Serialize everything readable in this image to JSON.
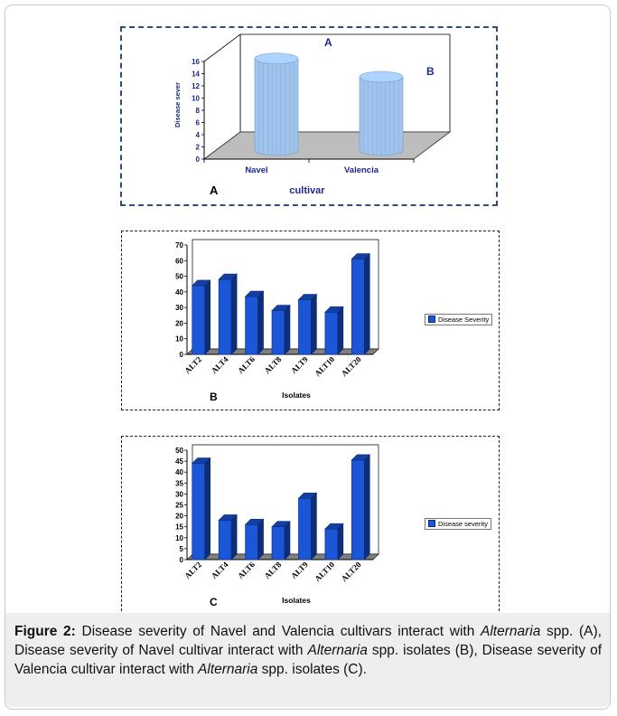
{
  "caption": {
    "lead": "Figure 2:",
    "part1": " Disease severity of Navel and Valencia cultivars interact with ",
    "genus1": "Alternaria",
    "part2": " spp. (A), Disease severity of Navel cultivar interact with ",
    "genus2": "Alternaria",
    "part3": " spp. isolates (B), Disease severity of Valencia cultivar interact with ",
    "genus3": "Alternaria",
    "part4": " spp. isolates (C)."
  },
  "chart_data": [
    {
      "panel": "A",
      "type": "bar",
      "categories": [
        "Navel",
        "Valencia"
      ],
      "values": [
        15,
        12
      ],
      "ylabel": "Disease sever",
      "xlabel": "cultivar",
      "ylim": [
        0,
        16
      ],
      "yticks": [
        "0",
        "2",
        "4",
        "6",
        "8",
        "10",
        "12",
        "14",
        "16"
      ],
      "annotations": [
        "A",
        "B"
      ],
      "panel_label": "A",
      "color": "#9fc4ee"
    },
    {
      "panel": "B",
      "type": "bar",
      "categories": [
        "ALT2",
        "ALT4",
        "ALT6",
        "ALT8",
        "ALT9",
        "ALT10",
        "ALT20"
      ],
      "values": [
        44,
        48,
        37,
        28,
        35,
        27,
        61
      ],
      "xlabel": "Isolates",
      "ylim": [
        0,
        70
      ],
      "yticks": [
        "0",
        "10",
        "20",
        "30",
        "40",
        "50",
        "60",
        "70"
      ],
      "legend": "Disease Severity",
      "panel_label": "B",
      "color": "#1a56d6"
    },
    {
      "panel": "C",
      "type": "bar",
      "categories": [
        "ALT2",
        "ALT4",
        "ALT6",
        "ALT8",
        "ALT9",
        "ALT10",
        "ALT20"
      ],
      "values": [
        44,
        18,
        16,
        15,
        28,
        14,
        45.5
      ],
      "xlabel": "Isolates",
      "ylim": [
        0,
        50
      ],
      "yticks": [
        "0",
        "5",
        "10",
        "15",
        "20",
        "25",
        "30",
        "35",
        "40",
        "45",
        "50"
      ],
      "legend": "Disease severity",
      "panel_label": "C",
      "color": "#1a56d6"
    }
  ]
}
